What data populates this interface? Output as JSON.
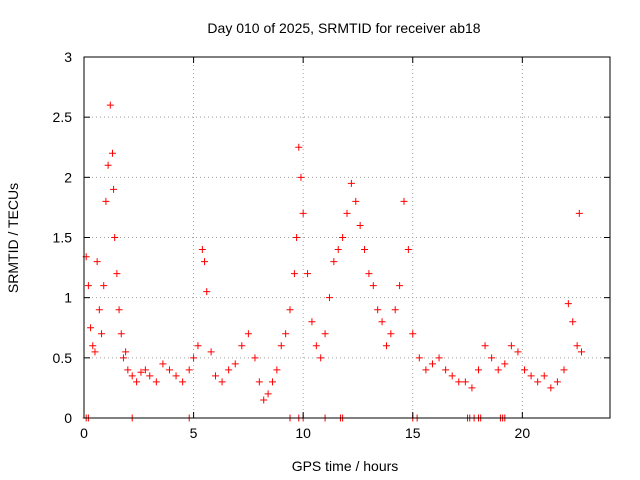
{
  "chart_data": {
    "type": "scatter",
    "title": "Day 010 of 2025, SRMTID for receiver ab18",
    "xlabel": "GPS time / hours",
    "ylabel": "SRMTID / TECUs",
    "xlim": [
      0,
      24
    ],
    "ylim": [
      0,
      3
    ],
    "x_ticks": [
      0,
      5,
      10,
      15,
      20
    ],
    "x_tick_labels": [
      "0",
      "5",
      "10",
      "15",
      "20"
    ],
    "y_ticks": [
      0,
      0.5,
      1,
      1.5,
      2,
      2.5,
      3
    ],
    "y_tick_labels": [
      "0",
      "0.5",
      "1",
      "1.5",
      "2",
      "2.5",
      "3"
    ],
    "grid": true,
    "marker": "+",
    "marker_color": "#ff0000",
    "series": [
      {
        "name": "SRMTID",
        "x": [
          0.1,
          0.2,
          0.3,
          0.4,
          0.5,
          0.6,
          0.7,
          0.8,
          0.9,
          1.0,
          1.1,
          1.2,
          1.3,
          1.35,
          1.4,
          1.5,
          1.6,
          1.7,
          1.8,
          1.9,
          2.0,
          2.2,
          2.4,
          2.6,
          2.8,
          3.0,
          3.3,
          3.6,
          3.9,
          4.2,
          4.5,
          4.8,
          5.0,
          5.2,
          5.4,
          5.5,
          5.6,
          5.8,
          6.0,
          6.3,
          6.6,
          6.9,
          7.2,
          7.5,
          7.8,
          8.0,
          8.2,
          8.4,
          8.6,
          8.8,
          9.0,
          9.2,
          9.4,
          9.6,
          9.7,
          9.8,
          9.9,
          10.0,
          10.2,
          10.4,
          10.6,
          10.8,
          11.0,
          11.2,
          11.4,
          11.6,
          11.8,
          12.0,
          12.2,
          12.4,
          12.6,
          12.8,
          13.0,
          13.2,
          13.4,
          13.6,
          13.8,
          14.0,
          14.2,
          14.4,
          14.6,
          14.8,
          15.0,
          15.3,
          15.6,
          15.9,
          16.2,
          16.5,
          16.8,
          17.1,
          17.4,
          17.7,
          18.0,
          18.3,
          18.6,
          18.9,
          19.2,
          19.5,
          19.8,
          20.1,
          20.4,
          20.7,
          21.0,
          21.3,
          21.6,
          21.9,
          22.1,
          22.3,
          22.5,
          22.6,
          22.7
        ],
        "y": [
          1.34,
          1.1,
          0.75,
          0.6,
          0.55,
          1.3,
          0.9,
          0.7,
          1.1,
          1.8,
          2.1,
          2.6,
          2.2,
          1.9,
          1.5,
          1.2,
          0.9,
          0.7,
          0.5,
          0.55,
          0.4,
          0.35,
          0.3,
          0.38,
          0.4,
          0.35,
          0.3,
          0.45,
          0.4,
          0.35,
          0.3,
          0.4,
          0.5,
          0.6,
          1.4,
          1.3,
          1.05,
          0.55,
          0.35,
          0.3,
          0.4,
          0.45,
          0.6,
          0.7,
          0.5,
          0.3,
          0.15,
          0.2,
          0.3,
          0.4,
          0.6,
          0.7,
          0.9,
          1.2,
          1.5,
          2.25,
          2.0,
          1.7,
          1.2,
          0.8,
          0.6,
          0.5,
          0.7,
          1.0,
          1.3,
          1.4,
          1.5,
          1.7,
          1.95,
          1.8,
          1.6,
          1.4,
          1.2,
          1.1,
          0.9,
          0.8,
          0.6,
          0.7,
          0.9,
          1.1,
          1.8,
          1.4,
          0.7,
          0.5,
          0.4,
          0.45,
          0.5,
          0.4,
          0.35,
          0.3,
          0.3,
          0.25,
          0.4,
          0.6,
          0.5,
          0.4,
          0.45,
          0.6,
          0.55,
          0.4,
          0.35,
          0.3,
          0.35,
          0.25,
          0.3,
          0.4,
          0.95,
          0.8,
          0.6,
          1.7,
          0.55
        ]
      }
    ],
    "zero_points_x": [
      0.1,
      0.2,
      2.2,
      4.8,
      9.4,
      9.8,
      10.0,
      11.0,
      11.7,
      11.8,
      15.0,
      15.2,
      17.5,
      17.6,
      17.8,
      18.0,
      18.1,
      19.0,
      19.1,
      19.2
    ]
  }
}
